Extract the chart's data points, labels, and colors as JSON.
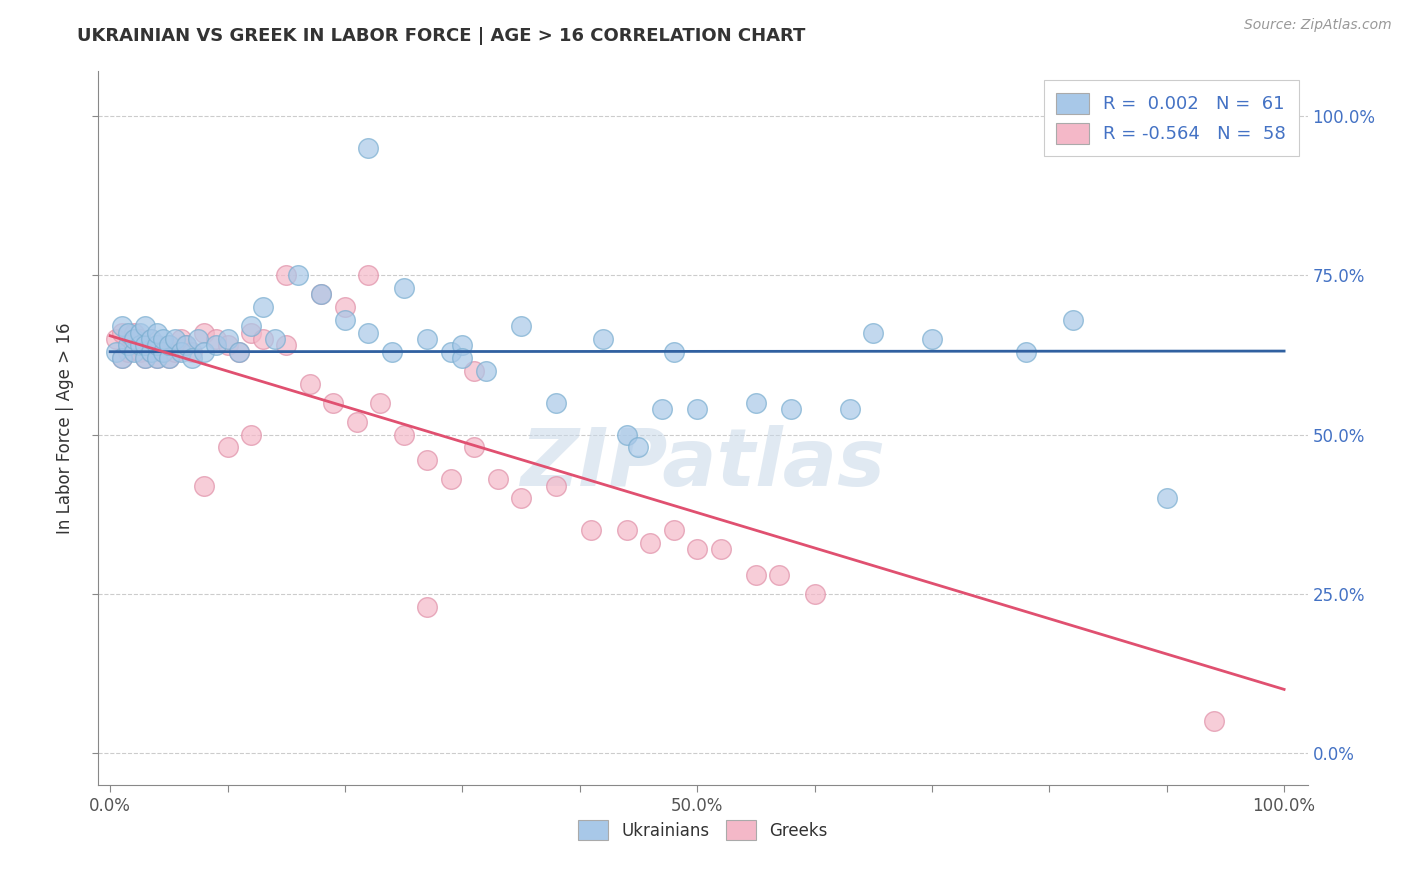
{
  "title": "UKRAINIAN VS GREEK IN LABOR FORCE | AGE > 16 CORRELATION CHART",
  "source_text": "Source: ZipAtlas.com",
  "ylabel": "In Labor Force | Age > 16",
  "xlim": [
    0,
    1
  ],
  "ylim": [
    0,
    1
  ],
  "xticks": [
    0,
    0.1,
    0.2,
    0.3,
    0.4,
    0.5,
    0.6,
    0.7,
    0.8,
    0.9,
    1.0
  ],
  "yticks": [
    0,
    0.25,
    0.5,
    0.75,
    1.0
  ],
  "xtick_labels": [
    "0.0%",
    "",
    "",
    "",
    "",
    "50.0%",
    "",
    "",
    "",
    "",
    "100.0%"
  ],
  "ytick_labels_right": [
    "0.0%",
    "25.0%",
    "50.0%",
    "75.0%",
    "100.0%"
  ],
  "blue_R": 0.002,
  "blue_N": 61,
  "pink_R": -0.564,
  "pink_N": 58,
  "blue_color": "#a8c8e8",
  "pink_color": "#f4b8c8",
  "blue_edge_color": "#7aaed0",
  "pink_edge_color": "#e090a8",
  "blue_line_color": "#3060a0",
  "pink_line_color": "#e05070",
  "watermark": "ZIPatlas",
  "legend_label1": "Ukrainians",
  "legend_label2": "Greeks",
  "blue_line_intercept": 0.63,
  "blue_line_slope": 0.001,
  "pink_line_intercept": 0.655,
  "pink_line_slope": -0.555,
  "blue_scatter_x": [
    0.005,
    0.01,
    0.01,
    0.015,
    0.015,
    0.02,
    0.02,
    0.025,
    0.025,
    0.03,
    0.03,
    0.03,
    0.035,
    0.035,
    0.04,
    0.04,
    0.04,
    0.045,
    0.045,
    0.05,
    0.05,
    0.055,
    0.06,
    0.065,
    0.07,
    0.075,
    0.08,
    0.09,
    0.1,
    0.11,
    0.12,
    0.13,
    0.14,
    0.16,
    0.18,
    0.2,
    0.22,
    0.24,
    0.25,
    0.27,
    0.29,
    0.3,
    0.32,
    0.35,
    0.38,
    0.42,
    0.44,
    0.48,
    0.5,
    0.55,
    0.58,
    0.3,
    0.45,
    0.47,
    0.63,
    0.65,
    0.7,
    0.78,
    0.82,
    0.9,
    0.22
  ],
  "blue_scatter_y": [
    0.63,
    0.62,
    0.67,
    0.64,
    0.66,
    0.63,
    0.65,
    0.64,
    0.66,
    0.62,
    0.64,
    0.67,
    0.63,
    0.65,
    0.62,
    0.64,
    0.66,
    0.63,
    0.65,
    0.62,
    0.64,
    0.65,
    0.63,
    0.64,
    0.62,
    0.65,
    0.63,
    0.64,
    0.65,
    0.63,
    0.67,
    0.7,
    0.65,
    0.75,
    0.72,
    0.68,
    0.66,
    0.63,
    0.73,
    0.65,
    0.63,
    0.64,
    0.6,
    0.67,
    0.55,
    0.65,
    0.5,
    0.63,
    0.54,
    0.55,
    0.54,
    0.62,
    0.48,
    0.54,
    0.54,
    0.66,
    0.65,
    0.63,
    0.68,
    0.4,
    0.95
  ],
  "pink_scatter_x": [
    0.005,
    0.01,
    0.01,
    0.015,
    0.02,
    0.02,
    0.025,
    0.025,
    0.03,
    0.03,
    0.035,
    0.035,
    0.04,
    0.04,
    0.045,
    0.05,
    0.05,
    0.055,
    0.06,
    0.065,
    0.07,
    0.08,
    0.09,
    0.1,
    0.11,
    0.12,
    0.13,
    0.15,
    0.17,
    0.19,
    0.21,
    0.23,
    0.25,
    0.27,
    0.29,
    0.31,
    0.33,
    0.35,
    0.38,
    0.41,
    0.44,
    0.46,
    0.48,
    0.5,
    0.52,
    0.55,
    0.57,
    0.6,
    0.15,
    0.18,
    0.2,
    0.22,
    0.31,
    0.12,
    0.1,
    0.08,
    0.94,
    0.27
  ],
  "pink_scatter_y": [
    0.65,
    0.62,
    0.66,
    0.63,
    0.64,
    0.66,
    0.63,
    0.65,
    0.62,
    0.64,
    0.63,
    0.65,
    0.62,
    0.64,
    0.63,
    0.62,
    0.64,
    0.63,
    0.65,
    0.64,
    0.63,
    0.66,
    0.65,
    0.64,
    0.63,
    0.66,
    0.65,
    0.64,
    0.58,
    0.55,
    0.52,
    0.55,
    0.5,
    0.46,
    0.43,
    0.48,
    0.43,
    0.4,
    0.42,
    0.35,
    0.35,
    0.33,
    0.35,
    0.32,
    0.32,
    0.28,
    0.28,
    0.25,
    0.75,
    0.72,
    0.7,
    0.75,
    0.6,
    0.5,
    0.48,
    0.42,
    0.05,
    0.23
  ]
}
